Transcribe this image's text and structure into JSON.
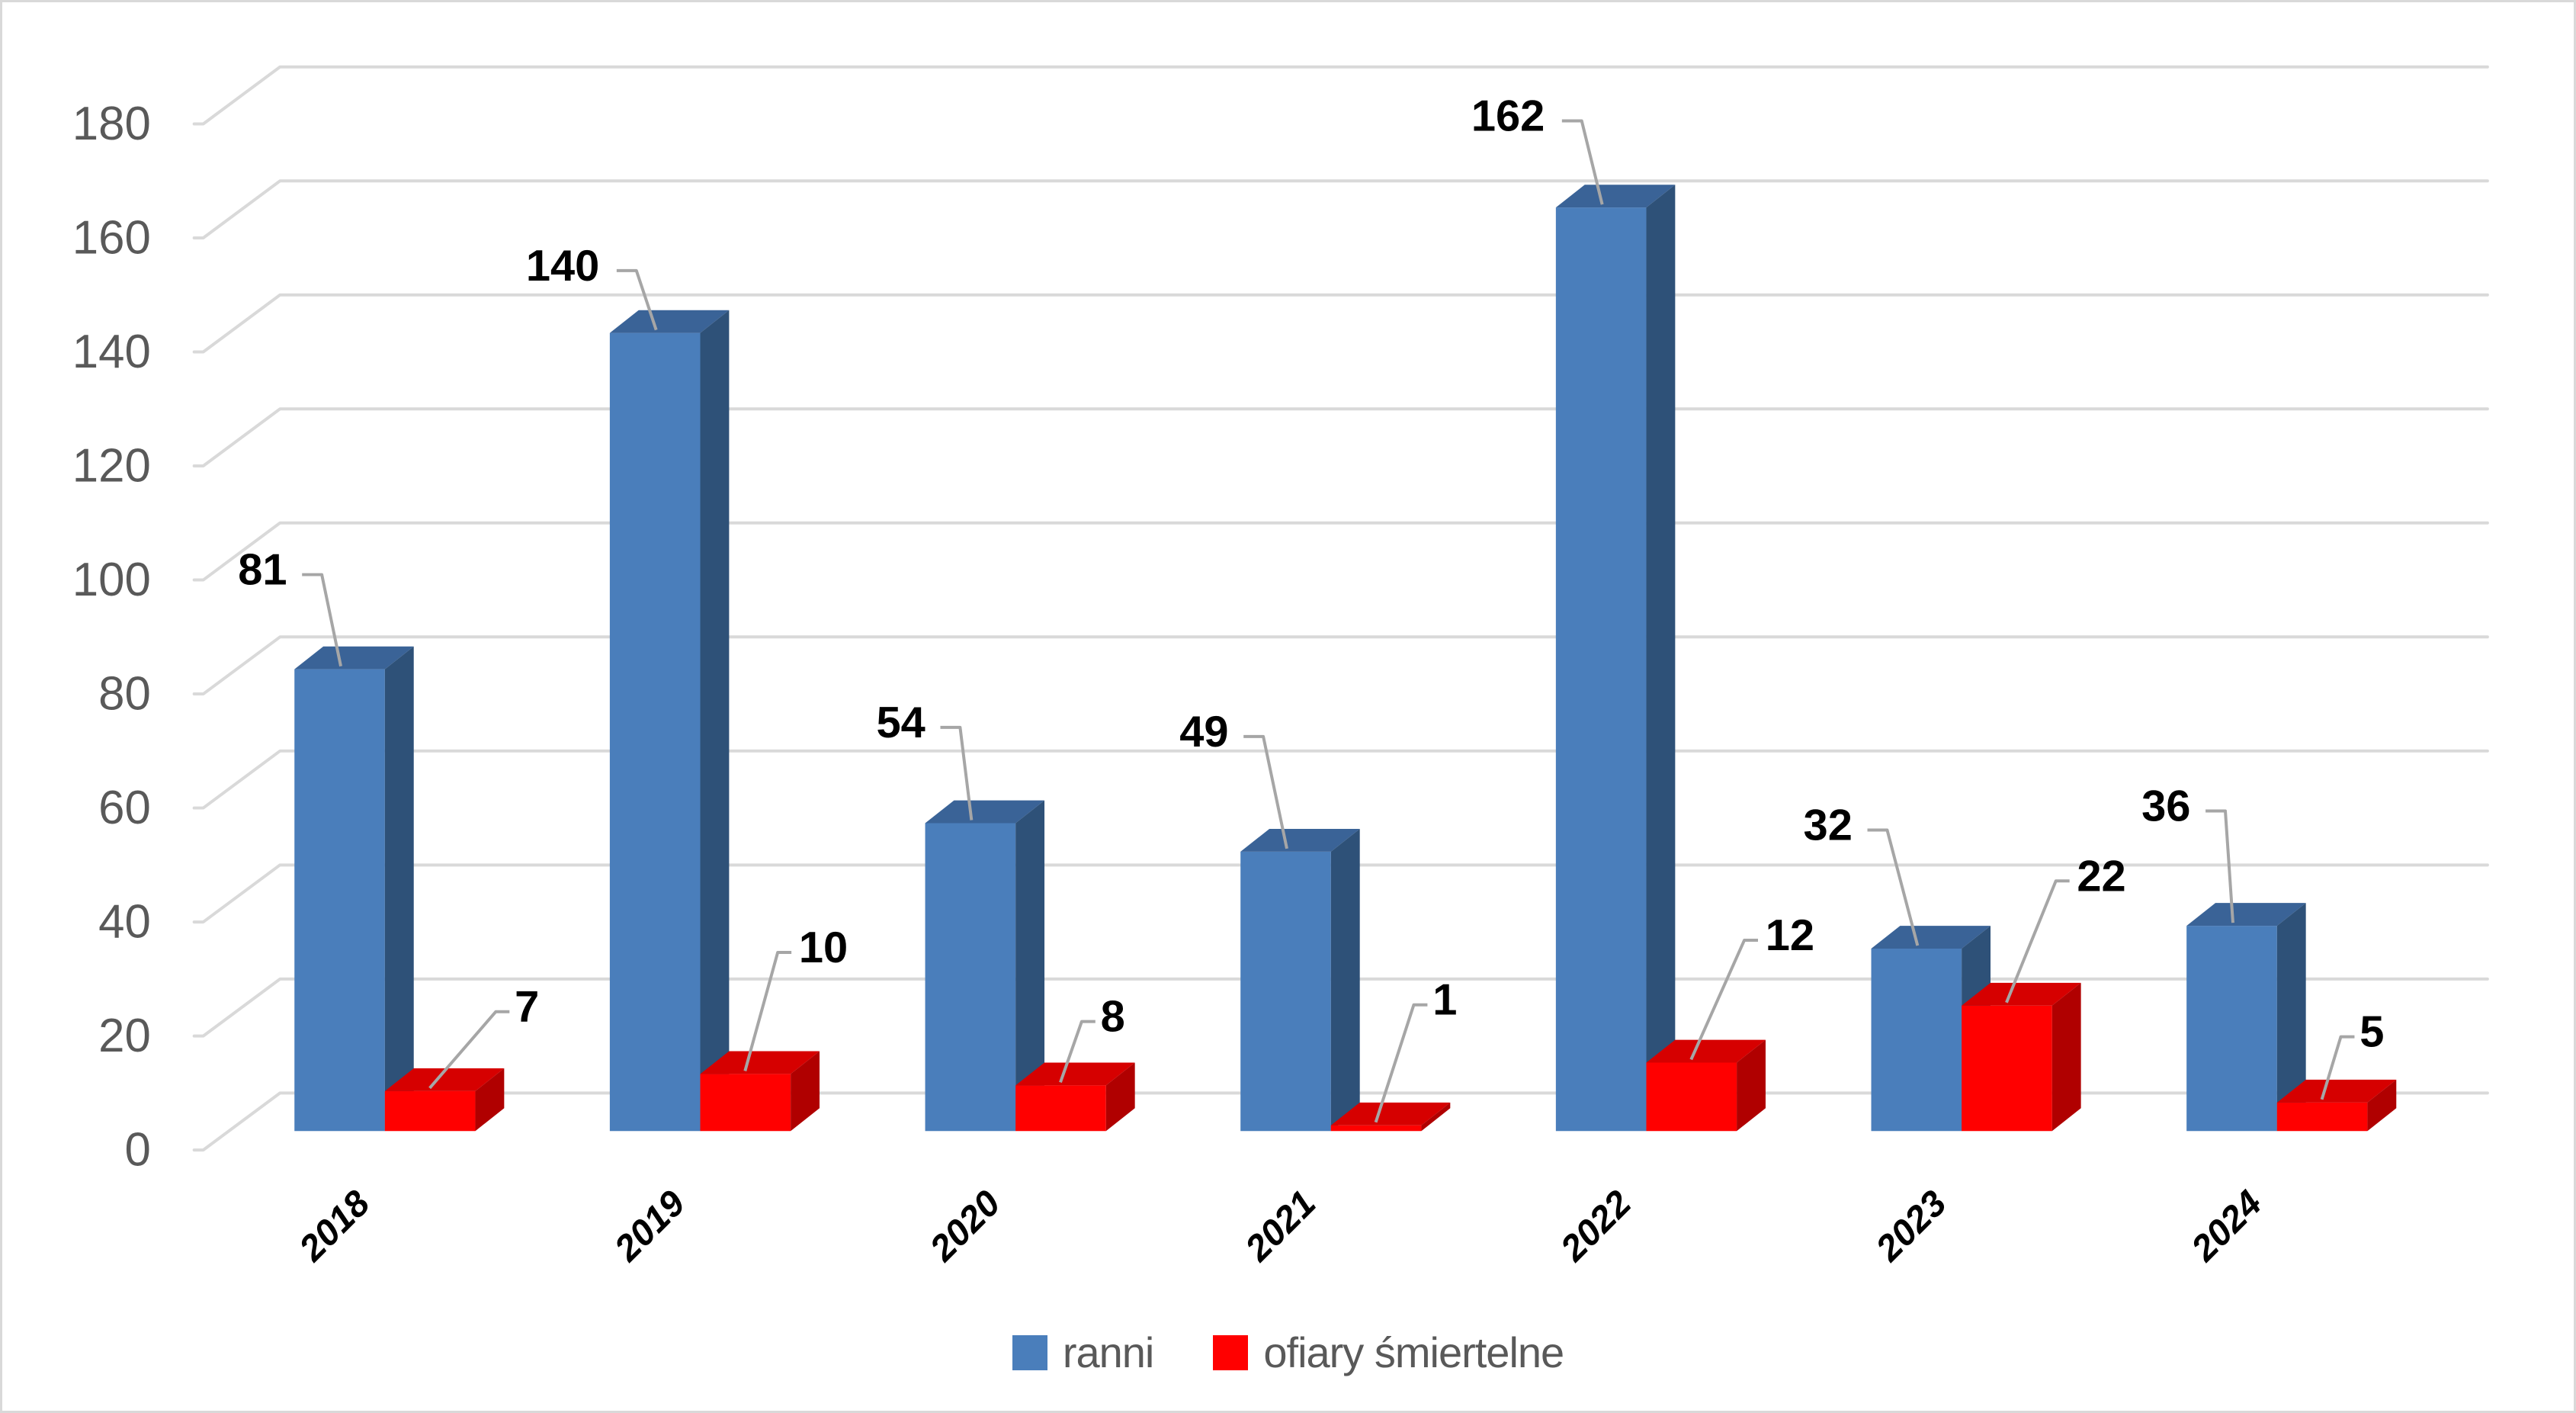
{
  "chart_data": {
    "type": "bar",
    "style": "3d-clustered-column",
    "title": "",
    "xlabel": "",
    "ylabel": "",
    "categories": [
      "2018",
      "2019",
      "2020",
      "2021",
      "2022",
      "2023",
      "2024"
    ],
    "series": [
      {
        "name": "ranni",
        "color": "#4A7EBB",
        "values": [
          81,
          140,
          54,
          49,
          162,
          32,
          36
        ]
      },
      {
        "name": "ofiary śmiertelne",
        "color": "#FF0000",
        "values": [
          7,
          10,
          8,
          1,
          12,
          22,
          5
        ]
      }
    ],
    "ylim": [
      0,
      180
    ],
    "ytick_interval": 20,
    "ytick_labels": [
      "0",
      "20",
      "40",
      "60",
      "80",
      "100",
      "120",
      "140",
      "160",
      "180"
    ],
    "grid": true,
    "data_labels": true,
    "legend_position": "bottom"
  },
  "legend": {
    "items": [
      {
        "label": "ranni",
        "color": "#4A7EBB"
      },
      {
        "label": "ofiary śmiertelne",
        "color": "#FF0000"
      }
    ]
  },
  "colors": {
    "blue_front": "#4A7EBB",
    "blue_top": "#3A6397",
    "blue_side": "#2E5178",
    "red_front": "#FF0000",
    "red_top": "#D60000",
    "red_side": "#B00000",
    "gridline": "#D9D9D9",
    "leader_line": "#A6A6A6",
    "axis_text": "#595959",
    "data_label_text": "#000000",
    "category_text": "#000000",
    "border": "#D9D9D9"
  }
}
